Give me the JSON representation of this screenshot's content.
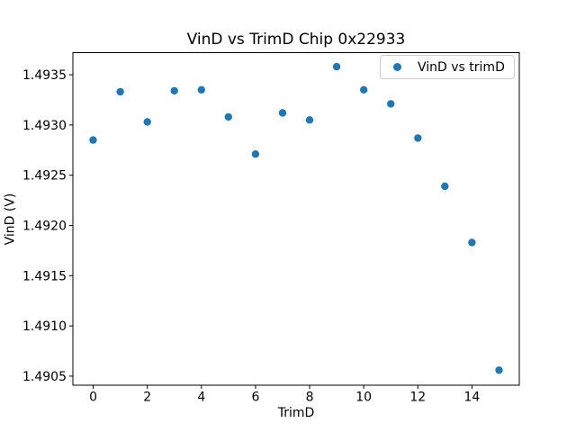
{
  "chart_data": {
    "type": "scatter",
    "title": "VinD vs TrimD Chip 0x22933",
    "xlabel": "TrimD",
    "ylabel": "VinD (V)",
    "legend": {
      "label": "VinD vs trimD",
      "position": "upper right"
    },
    "marker_color": "#1f77b4",
    "grid": false,
    "x": [
      0,
      1,
      2,
      3,
      4,
      5,
      6,
      7,
      8,
      9,
      10,
      11,
      12,
      13,
      14,
      15
    ],
    "y": [
      1.49285,
      1.49333,
      1.49303,
      1.49334,
      1.49335,
      1.49308,
      1.49271,
      1.49312,
      1.49305,
      1.49358,
      1.49335,
      1.49321,
      1.49287,
      1.49239,
      1.49183,
      1.49056
    ],
    "xlim": [
      -0.75,
      15.75
    ],
    "ylim": [
      1.49041,
      1.49372
    ],
    "xticks": [
      0,
      2,
      4,
      6,
      8,
      10,
      12,
      14
    ],
    "xtick_labels": [
      "0",
      "2",
      "4",
      "6",
      "8",
      "10",
      "12",
      "14"
    ],
    "yticks": [
      1.4905,
      1.491,
      1.4915,
      1.492,
      1.4925,
      1.493,
      1.4935
    ],
    "ytick_labels": [
      "1.4905",
      "1.4910",
      "1.4915",
      "1.4920",
      "1.4925",
      "1.4930",
      "1.4935"
    ]
  }
}
